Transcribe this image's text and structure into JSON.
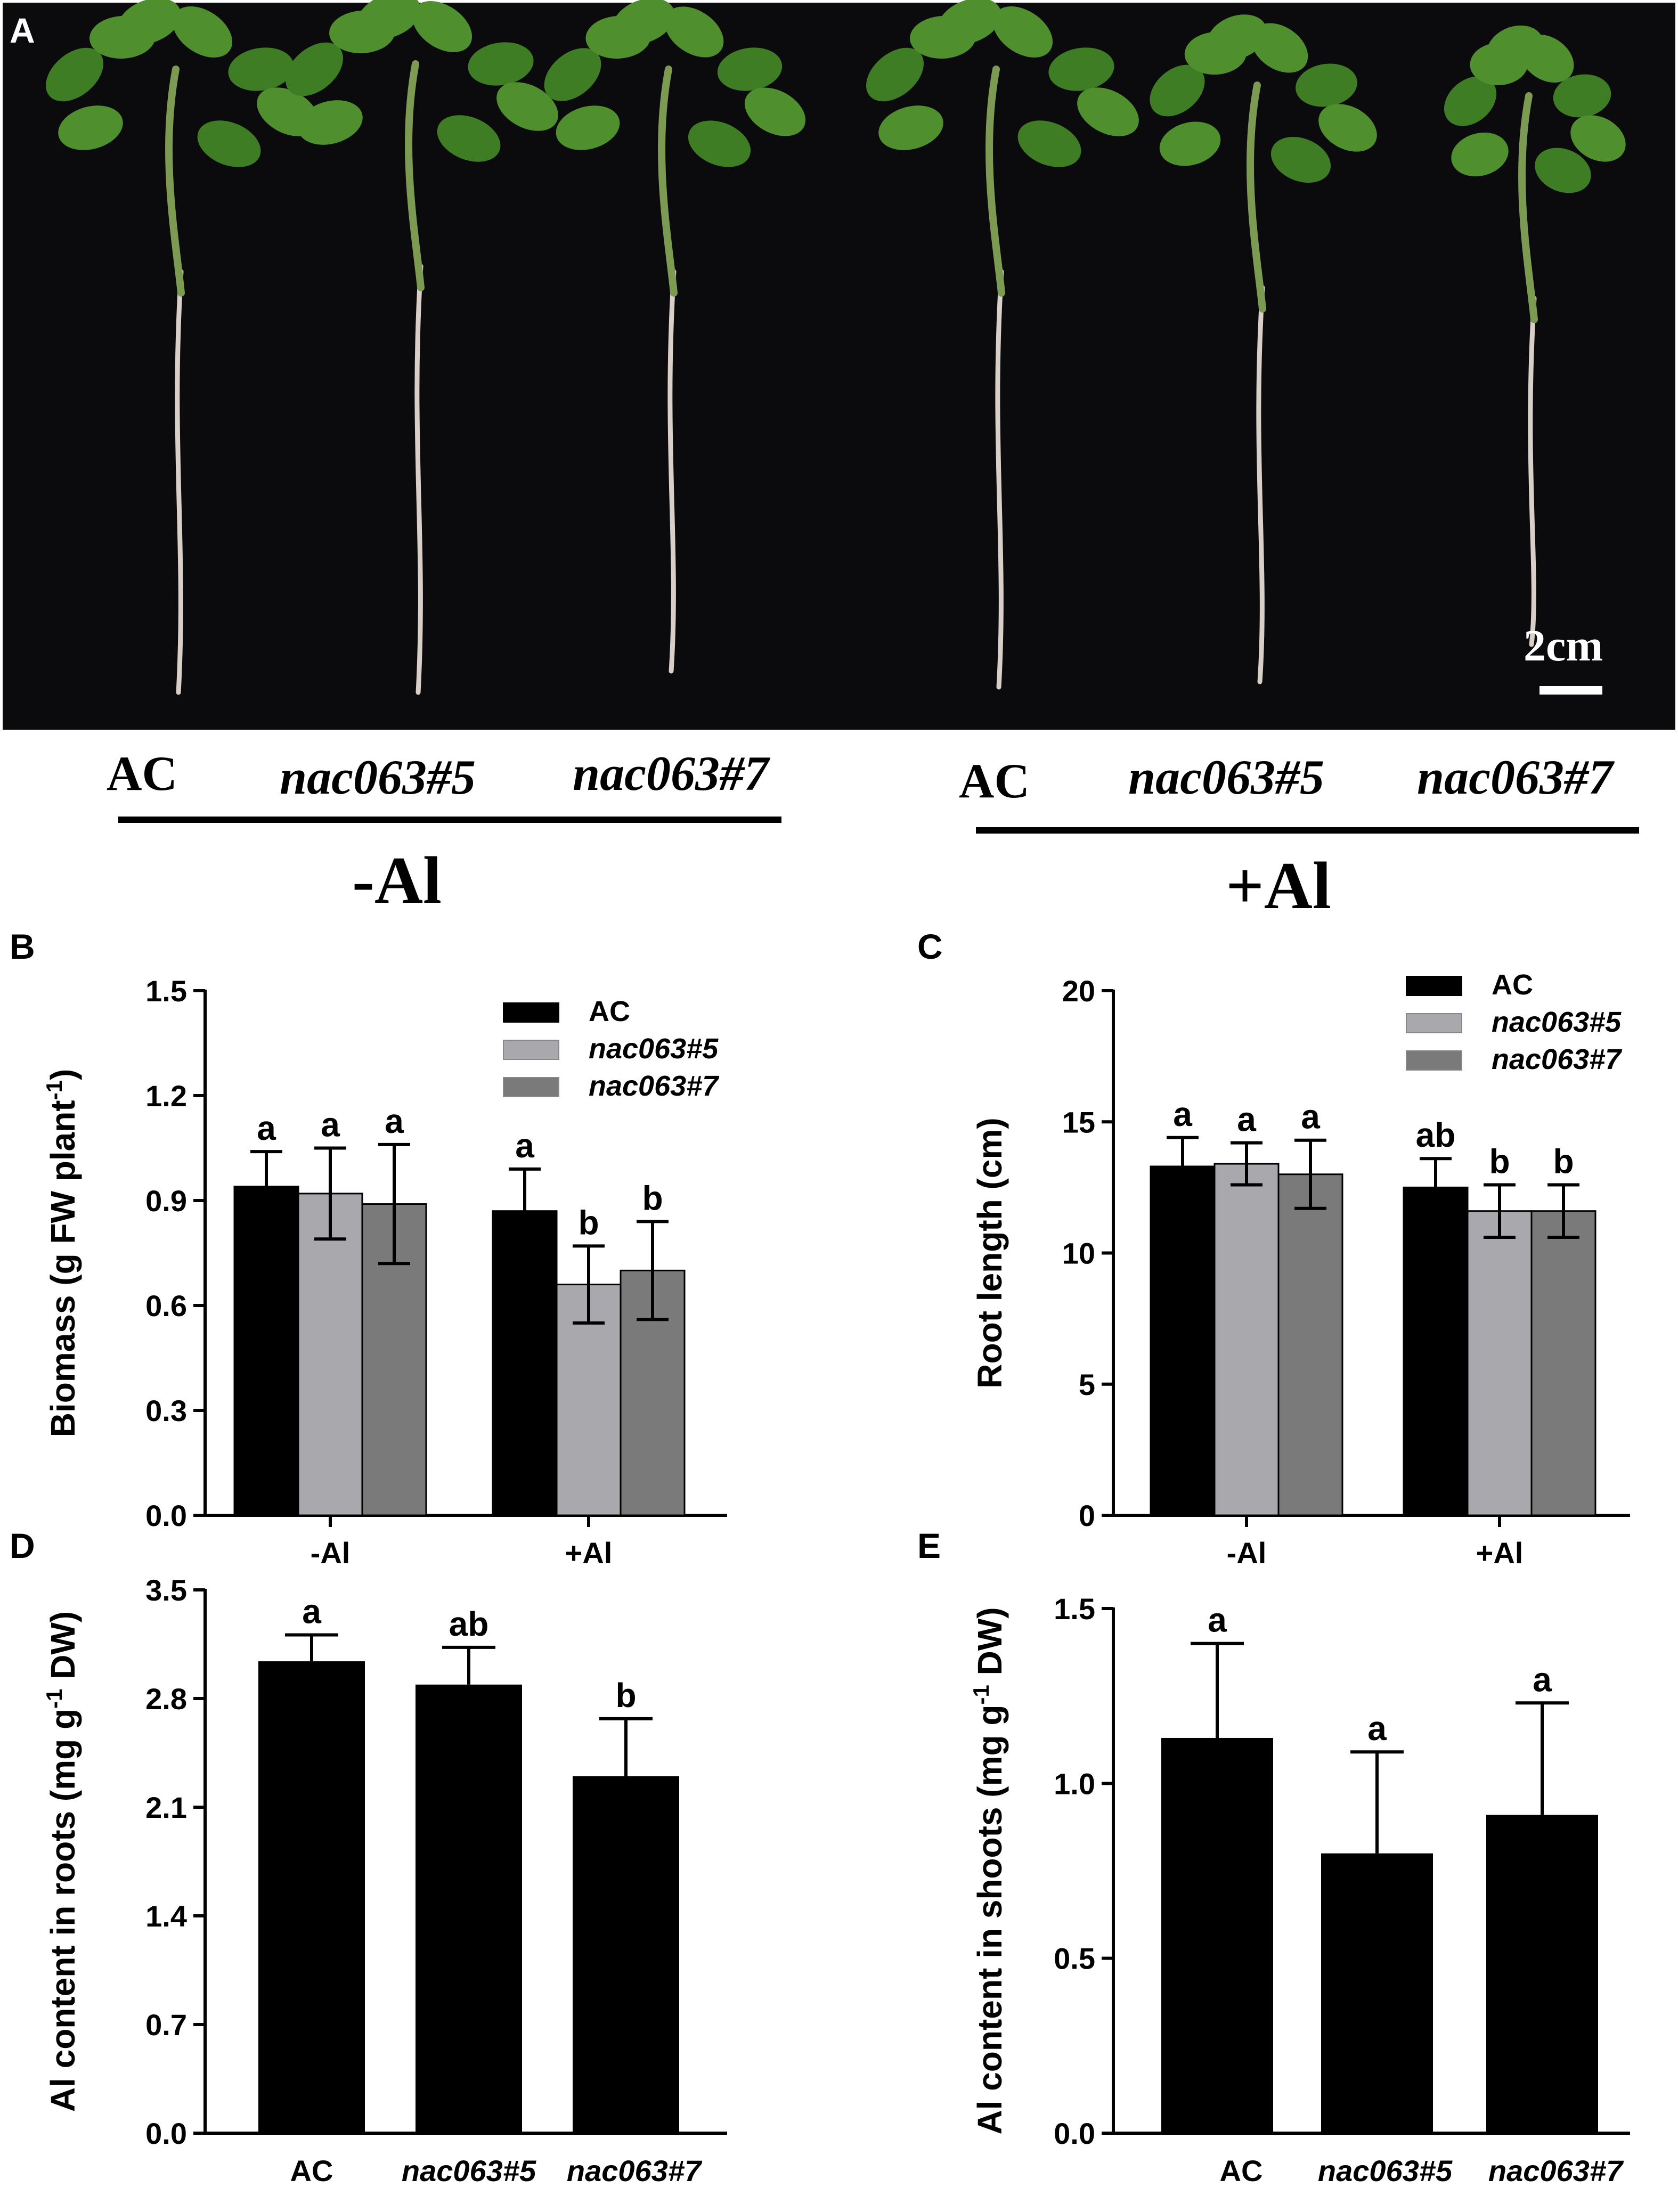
{
  "panel_a": {
    "letter": "A",
    "scale_label": "2cm",
    "group_left": {
      "condition": "-Al",
      "genotypes": [
        "AC",
        "nac063#5",
        "nac063#7"
      ]
    },
    "group_right": {
      "condition": "+Al",
      "genotypes": [
        "AC",
        "nac063#5",
        "nac063#7"
      ]
    },
    "colors": {
      "background": "#0b0b0d",
      "leaf": "#4f8f2e",
      "stem": "#7c9a52",
      "root": "#d9cfc9"
    }
  },
  "chart_data": [
    {
      "panel": "B",
      "type": "bar",
      "ylabel": "Biomass (g FW plant-1)",
      "ylabel_parts": [
        "Biomass (g FW plant",
        "-1",
        ")"
      ],
      "categories": [
        "-Al",
        "+Al"
      ],
      "ylim": [
        0,
        1.5
      ],
      "yticks": [
        "0.0",
        "0.3",
        "0.6",
        "0.9",
        "1.2",
        "1.5"
      ],
      "legend_position": "top-right",
      "series": [
        {
          "name": "AC",
          "color": "#000000",
          "values": [
            0.94,
            0.87
          ],
          "errors": [
            0.1,
            0.12
          ],
          "letters": [
            "a",
            "a"
          ]
        },
        {
          "name": "nac063#5",
          "color": "#a9a9ad",
          "values": [
            0.92,
            0.66
          ],
          "errors": [
            0.13,
            0.11
          ],
          "letters": [
            "a",
            "b"
          ]
        },
        {
          "name": "nac063#7",
          "color": "#7a7a7a",
          "values": [
            0.89,
            0.7
          ],
          "errors": [
            0.17,
            0.14
          ],
          "letters": [
            "a",
            "b"
          ]
        }
      ]
    },
    {
      "panel": "C",
      "type": "bar",
      "ylabel": "Root length (cm)",
      "categories": [
        "-Al",
        "+Al"
      ],
      "ylim": [
        0,
        20
      ],
      "yticks": [
        "0",
        "5",
        "10",
        "15",
        "20"
      ],
      "legend_position": "top-right",
      "series": [
        {
          "name": "AC",
          "color": "#000000",
          "values": [
            13.3,
            12.5
          ],
          "errors": [
            1.1,
            1.1
          ],
          "letters": [
            "a",
            "ab"
          ]
        },
        {
          "name": "nac063#5",
          "color": "#a9a9ad",
          "values": [
            13.4,
            11.6
          ],
          "errors": [
            0.8,
            1.0
          ],
          "letters": [
            "a",
            "b"
          ]
        },
        {
          "name": "nac063#7",
          "color": "#7a7a7a",
          "values": [
            13.0,
            11.6
          ],
          "errors": [
            1.3,
            1.0
          ],
          "letters": [
            "a",
            "b"
          ]
        }
      ]
    },
    {
      "panel": "D",
      "type": "bar",
      "ylabel": "Al content in roots (mg g-1 DW)",
      "ylabel_parts": [
        "Al content in roots (mg g",
        "-1",
        " DW)"
      ],
      "categories": [
        "AC",
        "nac063#5",
        "nac063#7"
      ],
      "italic_categories": [
        false,
        true,
        true
      ],
      "ylim": [
        0,
        3.5
      ],
      "yticks": [
        "0.0",
        "0.7",
        "1.4",
        "2.1",
        "2.8",
        "3.5"
      ],
      "color": "#000000",
      "values": [
        3.04,
        2.89,
        2.3
      ],
      "errors": [
        0.17,
        0.24,
        0.37
      ],
      "letters": [
        "a",
        "ab",
        "b"
      ]
    },
    {
      "panel": "E",
      "type": "bar",
      "ylabel": "Al content in shoots (mg g-1 DW)",
      "ylabel_parts": [
        "Al content in shoots (mg g",
        "-1",
        " DW)"
      ],
      "categories": [
        "AC",
        "nac063#5",
        "nac063#7"
      ],
      "italic_categories": [
        false,
        true,
        true
      ],
      "ylim": [
        0,
        1.5
      ],
      "yticks": [
        "0.0",
        "0.5",
        "1.0",
        "1.5"
      ],
      "color": "#000000",
      "values": [
        1.13,
        0.8,
        0.91
      ],
      "errors": [
        0.27,
        0.29,
        0.32
      ],
      "letters": [
        "a",
        "a",
        "a"
      ]
    }
  ]
}
